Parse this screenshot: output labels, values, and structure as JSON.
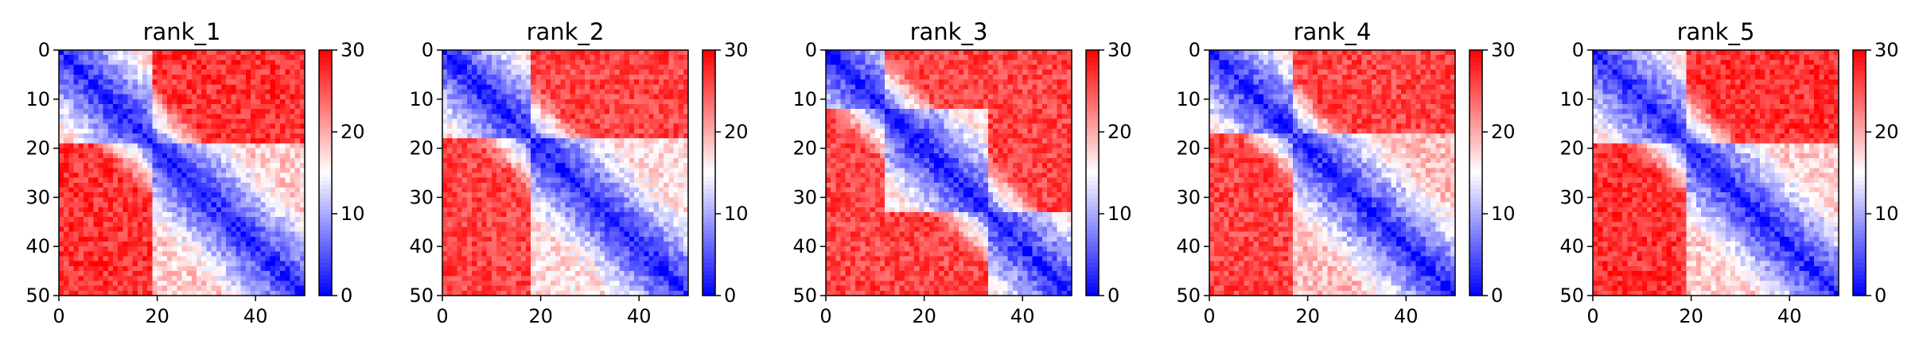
{
  "chart_data": [
    {
      "type": "heatmap",
      "title": "rank_1",
      "size": 50,
      "xlim": [
        0,
        50
      ],
      "ylim": [
        50,
        0
      ],
      "xticks": [
        0,
        20,
        40
      ],
      "yticks": [
        0,
        10,
        20,
        30,
        40,
        50
      ],
      "cmap": "bwr",
      "colorbar": {
        "min": 0,
        "max": 30,
        "ticks": [
          0,
          10,
          20,
          30
        ]
      },
      "block_boundaries": [
        19
      ],
      "inner_block_level": 14,
      "cross_block_level": 27
    },
    {
      "type": "heatmap",
      "title": "rank_2",
      "size": 50,
      "xlim": [
        0,
        50
      ],
      "ylim": [
        50,
        0
      ],
      "xticks": [
        0,
        20,
        40
      ],
      "yticks": [
        0,
        10,
        20,
        30,
        40,
        50
      ],
      "cmap": "bwr",
      "colorbar": {
        "min": 0,
        "max": 30,
        "ticks": [
          0,
          10,
          20,
          30
        ]
      },
      "block_boundaries": [
        18
      ],
      "inner_block_level": 13,
      "cross_block_level": 26
    },
    {
      "type": "heatmap",
      "title": "rank_3",
      "size": 50,
      "xlim": [
        0,
        50
      ],
      "ylim": [
        50,
        0
      ],
      "xticks": [
        0,
        20,
        40
      ],
      "yticks": [
        0,
        10,
        20,
        30,
        40,
        50
      ],
      "cmap": "bwr",
      "colorbar": {
        "min": 0,
        "max": 30,
        "ticks": [
          0,
          10,
          20,
          30
        ]
      },
      "block_boundaries": [
        12,
        33
      ],
      "inner_block_level": 12,
      "cross_block_level": 26
    },
    {
      "type": "heatmap",
      "title": "rank_4",
      "size": 50,
      "xlim": [
        0,
        50
      ],
      "ylim": [
        50,
        0
      ],
      "xticks": [
        0,
        20,
        40
      ],
      "yticks": [
        0,
        10,
        20,
        30,
        40,
        50
      ],
      "cmap": "bwr",
      "colorbar": {
        "min": 0,
        "max": 30,
        "ticks": [
          0,
          10,
          20,
          30
        ]
      },
      "block_boundaries": [
        17
      ],
      "inner_block_level": 15,
      "cross_block_level": 26
    },
    {
      "type": "heatmap",
      "title": "rank_5",
      "size": 50,
      "xlim": [
        0,
        50
      ],
      "ylim": [
        50,
        0
      ],
      "xticks": [
        0,
        20,
        40
      ],
      "yticks": [
        0,
        10,
        20,
        30,
        40,
        50
      ],
      "cmap": "bwr",
      "colorbar": {
        "min": 0,
        "max": 30,
        "ticks": [
          0,
          10,
          20,
          30
        ]
      },
      "block_boundaries": [
        19
      ],
      "inner_block_level": 14,
      "cross_block_level": 27
    }
  ]
}
